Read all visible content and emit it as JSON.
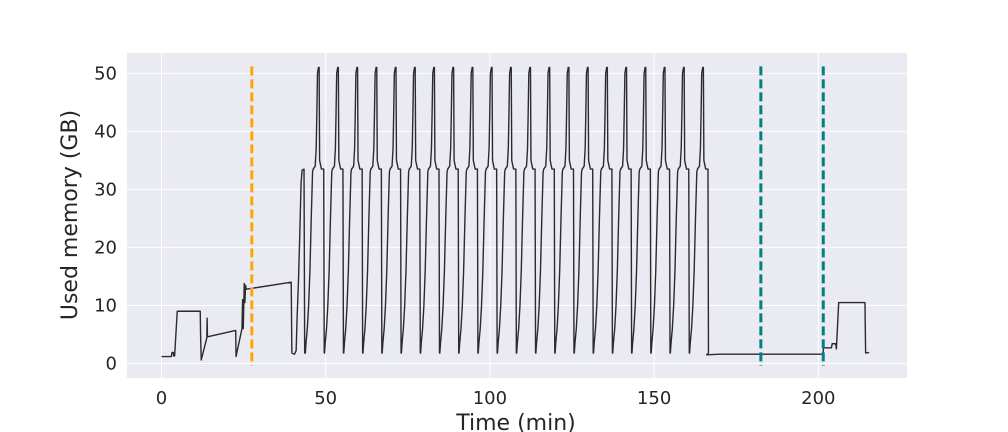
{
  "chart_data": {
    "type": "line",
    "title": "",
    "xlabel": "Time (min)",
    "ylabel": "Used memory (GB)",
    "xlim": [
      -10.5,
      227
    ],
    "ylim": [
      -2.5,
      53.5
    ],
    "xticks": [
      0,
      50,
      100,
      150,
      200
    ],
    "yticks": [
      0,
      10,
      20,
      30,
      40,
      50
    ],
    "grid": true,
    "style": {
      "background": "#eaeaf2",
      "grid_color": "#ffffff",
      "line_color": "#2b2b2b",
      "vline_colors": {
        "orange": "#ffa500",
        "teal": "#008080"
      }
    },
    "vlines": [
      {
        "x": 27.5,
        "color": "#ffa500",
        "style": "dashed"
      },
      {
        "x": 182.5,
        "color": "#008080",
        "style": "dashed"
      },
      {
        "x": 201.5,
        "color": "#008080",
        "style": "dashed"
      }
    ],
    "cycles": {
      "start": 43.8,
      "count": 21,
      "period": 5.85,
      "shape": [
        [
          0,
          1.8
        ],
        [
          0.2,
          3.5
        ],
        [
          0.6,
          6
        ],
        [
          1.0,
          10
        ],
        [
          1.4,
          16
        ],
        [
          1.8,
          25
        ],
        [
          2.2,
          33
        ],
        [
          2.4,
          33.5
        ],
        [
          3.0,
          34
        ],
        [
          3.3,
          37
        ],
        [
          3.5,
          43
        ],
        [
          3.7,
          50
        ],
        [
          4.0,
          51
        ],
        [
          4.2,
          51
        ],
        [
          4.35,
          35
        ],
        [
          4.9,
          33.5
        ],
        [
          5.6,
          33.5
        ],
        [
          5.75,
          1.8
        ]
      ]
    },
    "series": [
      {
        "pre": [
          [
            0,
            1.2
          ],
          [
            3,
            1.2
          ],
          [
            3.2,
            1.9
          ],
          [
            3.6,
            1.9
          ],
          [
            3.7,
            1.3
          ],
          [
            4.0,
            1.3
          ],
          [
            4.8,
            9
          ],
          [
            11.8,
            9
          ],
          [
            11.9,
            5
          ],
          [
            12.1,
            0.6
          ],
          [
            13.8,
            4.4
          ],
          [
            13.9,
            7.8
          ],
          [
            14.0,
            4.6
          ],
          [
            22.6,
            5.7
          ],
          [
            22.7,
            1.2
          ],
          [
            24.5,
            6
          ],
          [
            24.7,
            11
          ],
          [
            24.9,
            6
          ],
          [
            25.2,
            13.8
          ],
          [
            25.4,
            10.5
          ],
          [
            25.6,
            13.5
          ],
          [
            25.8,
            12.8
          ],
          [
            39.5,
            14
          ],
          [
            39.7,
            1.8
          ],
          [
            40.5,
            1.6
          ],
          [
            41.0,
            2.2
          ],
          [
            41.3,
            8
          ],
          [
            41.7,
            14
          ],
          [
            42.1,
            22
          ],
          [
            42.5,
            31
          ],
          [
            42.8,
            33.3
          ],
          [
            43.4,
            33.5
          ],
          [
            43.6,
            1.8
          ]
        ],
        "post": [
          [
            166,
            1.5
          ],
          [
            170,
            1.6
          ],
          [
            201.4,
            1.6
          ],
          [
            201.6,
            2.7
          ],
          [
            204,
            2.7
          ],
          [
            204.2,
            3.4
          ],
          [
            205.3,
            3.4
          ],
          [
            205.5,
            2.5
          ],
          [
            206.2,
            10.5
          ],
          [
            214.2,
            10.5
          ],
          [
            214.4,
            1.8
          ],
          [
            215.5,
            1.9
          ]
        ]
      }
    ]
  }
}
